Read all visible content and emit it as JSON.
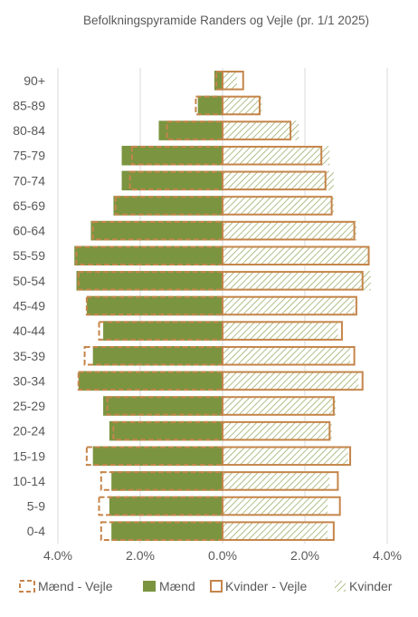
{
  "chart_data": {
    "type": "bar",
    "orientation": "horizontal",
    "title": "Befolkningspyramide Randers og Vejle (pr. 1/1 2025)",
    "categories": [
      "90+",
      "85-89",
      "80-84",
      "75-79",
      "70-74",
      "65-69",
      "60-64",
      "55-59",
      "50-54",
      "45-49",
      "40-44",
      "35-39",
      "30-34",
      "25-29",
      "20-24",
      "15-19",
      "10-14",
      "5-9",
      "0-4"
    ],
    "x_ticks": [
      "4.0%",
      "2.0%",
      "0.0%",
      "2.0%",
      "4.0%"
    ],
    "xlim": [
      -4.0,
      4.0
    ],
    "unit": "%",
    "grid": true,
    "legend_position": "bottom",
    "series": [
      {
        "name": "Mænd - Vejle",
        "side": "left",
        "style": "dashed-outline",
        "color": "#C5854A",
        "values": [
          0.15,
          0.65,
          1.35,
          2.2,
          2.25,
          2.6,
          3.15,
          3.55,
          3.5,
          3.3,
          3.0,
          3.35,
          3.5,
          2.8,
          2.65,
          3.3,
          2.95,
          3.0,
          2.95
        ]
      },
      {
        "name": "Mænd",
        "side": "left",
        "style": "solid",
        "color": "#7B9440",
        "values": [
          0.2,
          0.6,
          1.55,
          2.45,
          2.45,
          2.65,
          3.2,
          3.6,
          3.55,
          3.3,
          2.9,
          3.15,
          3.5,
          2.9,
          2.75,
          3.15,
          2.7,
          2.75,
          2.7
        ]
      },
      {
        "name": "Kvinder - Vejle",
        "side": "right",
        "style": "outline",
        "color": "#C5854A",
        "values": [
          0.5,
          0.9,
          1.65,
          2.4,
          2.5,
          2.65,
          3.2,
          3.55,
          3.4,
          3.25,
          2.9,
          3.2,
          3.4,
          2.7,
          2.6,
          3.1,
          2.8,
          2.85,
          2.7
        ]
      },
      {
        "name": "Kvinder",
        "side": "right",
        "style": "hatched",
        "color": "#9BAF6B",
        "values": [
          0.35,
          0.95,
          1.85,
          2.6,
          2.7,
          2.7,
          3.25,
          3.55,
          3.6,
          3.2,
          2.8,
          3.1,
          3.3,
          2.75,
          2.65,
          3.05,
          2.6,
          2.55,
          2.55
        ]
      }
    ]
  }
}
